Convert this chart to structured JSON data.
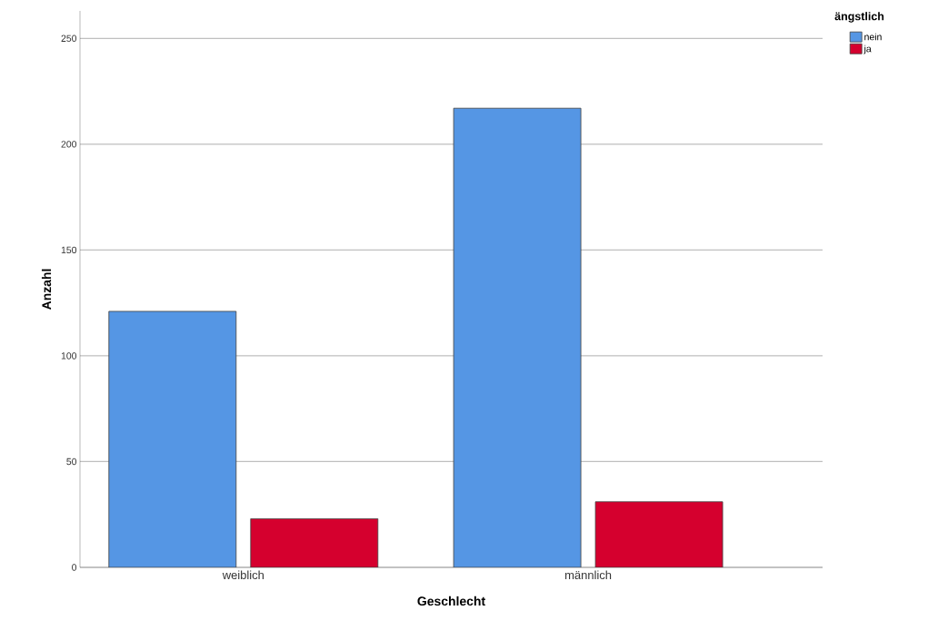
{
  "chart_data": {
    "type": "bar",
    "xlabel": "Geschlecht",
    "ylabel": "Anzahl",
    "legend_title": "ängstlich",
    "categories": [
      "weiblich",
      "männlich"
    ],
    "series": [
      {
        "name": "nein",
        "color": "#5596e4",
        "values": [
          121,
          217
        ]
      },
      {
        "name": "ja",
        "color": "#d5002e",
        "values": [
          23,
          31
        ]
      }
    ],
    "ylim": [
      0,
      263
    ],
    "yticks": [
      0,
      50,
      100,
      150,
      200,
      250
    ],
    "grid": "y",
    "legend": "top right"
  }
}
